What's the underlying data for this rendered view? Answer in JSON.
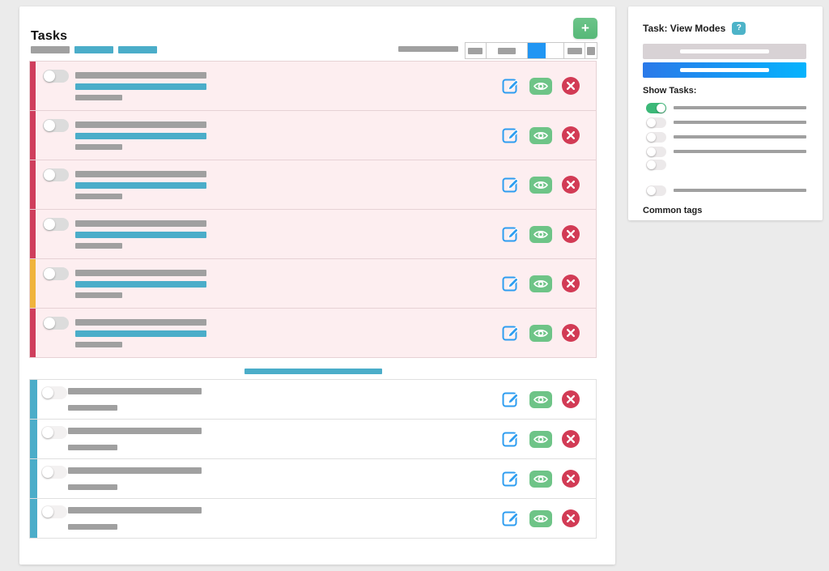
{
  "palette": {
    "window_bg": "#ebebeb",
    "placeholder_gray": "#a0a0a0",
    "teal": "#4badc9",
    "red_stripe": "#cf3e5c",
    "yellow_stripe": "#f0b43c",
    "pink_row": "#fdeef0",
    "selected_blue": "#2196f3",
    "edit_blue": "#2e9df0",
    "view_green": "#6ec487",
    "delete_red": "#d23b55",
    "add_green": "#57b878",
    "toggle_on_green": "#3cb878",
    "help_teal": "#4db3c8",
    "sidebar_blue_start": "#2a79e9",
    "sidebar_blue_end": "#05b3fd"
  },
  "tasks_panel": {
    "title": "Tasks",
    "add_button": {
      "label": "+"
    },
    "filter_chips": [
      {
        "name": "chip-gray",
        "color": "#9b9b9b"
      },
      {
        "name": "chip-teal-1",
        "color": "#4badc9"
      },
      {
        "name": "chip-teal-2",
        "color": "#4badc9"
      }
    ],
    "view_toolbar": {
      "label_placeholder_color": "#9b9b9b",
      "segments": [
        {
          "content": "pill"
        },
        {
          "content": "pill"
        },
        {
          "content": "selected",
          "color": "#2196f3"
        },
        {
          "content": "pill"
        },
        {
          "content": "square"
        }
      ],
      "selected_index": 2
    },
    "divider_color": "#4badc9",
    "sections": [
      {
        "id": "highlighted-tasks",
        "row_background": "#fdeef0",
        "border_color": "#e6d2d5",
        "rows": [
          {
            "stripe_color": "#cf3e5c",
            "toggle": "off",
            "has_link_bar": true
          },
          {
            "stripe_color": "#cf3e5c",
            "toggle": "off",
            "has_link_bar": true
          },
          {
            "stripe_color": "#cf3e5c",
            "toggle": "off",
            "has_link_bar": true
          },
          {
            "stripe_color": "#cf3e5c",
            "toggle": "off",
            "has_link_bar": true
          },
          {
            "stripe_color": "#f0b43c",
            "toggle": "off",
            "has_link_bar": true
          },
          {
            "stripe_color": "#cf3e5c",
            "toggle": "off",
            "has_link_bar": true
          }
        ]
      },
      {
        "id": "plain-tasks",
        "row_background": "#ffffff",
        "border_color": "#e0e0e0",
        "rows": [
          {
            "stripe_color": "#4badc9",
            "toggle": "off",
            "has_link_bar": false
          },
          {
            "stripe_color": "#4badc9",
            "toggle": "off",
            "has_link_bar": false
          },
          {
            "stripe_color": "#4badc9",
            "toggle": "off",
            "has_link_bar": false
          },
          {
            "stripe_color": "#4badc9",
            "toggle": "off",
            "has_link_bar": false
          }
        ]
      }
    ],
    "row_actions": [
      {
        "name": "edit",
        "icon": "edit-icon",
        "color": "#2e9df0"
      },
      {
        "name": "view",
        "icon": "eye-icon",
        "color": "#6ec487"
      },
      {
        "name": "delete",
        "icon": "delete-icon",
        "color": "#d23b55"
      }
    ]
  },
  "view_modes_panel": {
    "title": "Task: View Modes",
    "help_badge_label": "?",
    "mode_buttons": [
      {
        "id": "mode-inactive",
        "style": "gray"
      },
      {
        "id": "mode-active",
        "style": "blue-gradient"
      }
    ],
    "show_tasks_label": "Show Tasks:",
    "task_filters": [
      {
        "toggle": "on",
        "has_label_bar": true
      },
      {
        "toggle": "off",
        "has_label_bar": true
      },
      {
        "toggle": "off",
        "has_label_bar": true
      },
      {
        "toggle": "off",
        "has_label_bar": true
      },
      {
        "toggle": "off",
        "has_label_bar": false
      },
      {
        "toggle": "off",
        "has_label_bar": true,
        "gap_before": true
      }
    ],
    "common_tags_label": "Common tags"
  }
}
